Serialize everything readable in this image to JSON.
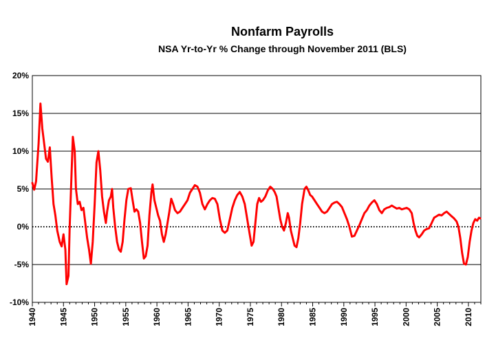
{
  "chart_data": {
    "type": "line",
    "title": "Nonfarm Payrolls",
    "subtitle": "NSA Yr-to-Yr % Change through November 2011 (BLS)",
    "xlabel": "",
    "ylabel": "",
    "xlim": [
      1940,
      2012
    ],
    "ylim": [
      -10,
      20
    ],
    "y_ticks": [
      20,
      15,
      10,
      5,
      0,
      -5,
      -10
    ],
    "y_tick_labels": [
      "20%",
      "15%",
      "10%",
      "5%",
      "0%",
      "-5%",
      "-10%"
    ],
    "x_ticks": [
      1940,
      1945,
      1950,
      1955,
      1960,
      1965,
      1970,
      1975,
      1980,
      1985,
      1990,
      1995,
      2000,
      2005,
      2010
    ],
    "x_tick_labels": [
      "1940",
      "1945",
      "1950",
      "1955",
      "1960",
      "1965",
      "1970",
      "1975",
      "1980",
      "1985",
      "1990",
      "1995",
      "2000",
      "2005",
      "2010"
    ],
    "grid": true,
    "zero_line": "dotted",
    "line_color": "#ff0000",
    "series": [
      {
        "name": "",
        "points": [
          [
            1940.0,
            5.8
          ],
          [
            1940.3,
            4.9
          ],
          [
            1940.6,
            6.0
          ],
          [
            1941.0,
            11.0
          ],
          [
            1941.3,
            16.3
          ],
          [
            1941.6,
            13.0
          ],
          [
            1941.9,
            11.0
          ],
          [
            1942.2,
            9.0
          ],
          [
            1942.5,
            8.6
          ],
          [
            1942.8,
            10.5
          ],
          [
            1943.1,
            6.5
          ],
          [
            1943.4,
            3.0
          ],
          [
            1943.7,
            1.5
          ],
          [
            1944.0,
            -0.5
          ],
          [
            1944.4,
            -2.0
          ],
          [
            1944.7,
            -2.6
          ],
          [
            1945.0,
            -1.0
          ],
          [
            1945.3,
            -3.0
          ],
          [
            1945.5,
            -7.6
          ],
          [
            1945.8,
            -6.5
          ],
          [
            1946.0,
            0.0
          ],
          [
            1946.3,
            7.0
          ],
          [
            1946.5,
            11.9
          ],
          [
            1946.8,
            10.0
          ],
          [
            1947.0,
            5.0
          ],
          [
            1947.3,
            3.0
          ],
          [
            1947.6,
            3.3
          ],
          [
            1947.9,
            2.2
          ],
          [
            1948.2,
            2.5
          ],
          [
            1948.5,
            0.5
          ],
          [
            1948.8,
            -1.5
          ],
          [
            1949.1,
            -3.0
          ],
          [
            1949.4,
            -4.9
          ],
          [
            1949.7,
            -2.0
          ],
          [
            1950.0,
            3.0
          ],
          [
            1950.3,
            8.5
          ],
          [
            1950.6,
            10.0
          ],
          [
            1950.9,
            7.5
          ],
          [
            1951.2,
            4.0
          ],
          [
            1951.5,
            2.0
          ],
          [
            1951.8,
            0.5
          ],
          [
            1952.0,
            2.0
          ],
          [
            1952.3,
            3.5
          ],
          [
            1952.6,
            4.0
          ],
          [
            1952.8,
            5.0
          ],
          [
            1953.0,
            2.5
          ],
          [
            1953.3,
            0.0
          ],
          [
            1953.6,
            -2.0
          ],
          [
            1953.9,
            -3.0
          ],
          [
            1954.2,
            -3.3
          ],
          [
            1954.5,
            -2.0
          ],
          [
            1954.8,
            1.0
          ],
          [
            1955.1,
            3.5
          ],
          [
            1955.4,
            5.0
          ],
          [
            1955.8,
            5.1
          ],
          [
            1956.1,
            3.5
          ],
          [
            1956.4,
            2.0
          ],
          [
            1956.7,
            2.3
          ],
          [
            1957.0,
            2.0
          ],
          [
            1957.3,
            0.5
          ],
          [
            1957.6,
            -2.0
          ],
          [
            1957.9,
            -4.2
          ],
          [
            1958.2,
            -3.9
          ],
          [
            1958.5,
            -2.5
          ],
          [
            1958.8,
            1.5
          ],
          [
            1959.1,
            4.5
          ],
          [
            1959.3,
            5.6
          ],
          [
            1959.6,
            3.5
          ],
          [
            1959.9,
            2.5
          ],
          [
            1960.2,
            1.5
          ],
          [
            1960.5,
            0.8
          ],
          [
            1960.8,
            -1.0
          ],
          [
            1961.1,
            -2.0
          ],
          [
            1961.4,
            -1.0
          ],
          [
            1961.7,
            0.5
          ],
          [
            1962.0,
            2.0
          ],
          [
            1962.3,
            3.7
          ],
          [
            1962.6,
            3.0
          ],
          [
            1962.9,
            2.2
          ],
          [
            1963.3,
            1.8
          ],
          [
            1963.7,
            2.0
          ],
          [
            1964.1,
            2.5
          ],
          [
            1964.5,
            3.0
          ],
          [
            1964.9,
            3.5
          ],
          [
            1965.3,
            4.5
          ],
          [
            1965.7,
            5.0
          ],
          [
            1966.1,
            5.5
          ],
          [
            1966.5,
            5.3
          ],
          [
            1966.9,
            4.5
          ],
          [
            1967.3,
            3.0
          ],
          [
            1967.7,
            2.3
          ],
          [
            1968.1,
            3.0
          ],
          [
            1968.5,
            3.5
          ],
          [
            1968.9,
            3.8
          ],
          [
            1969.3,
            3.7
          ],
          [
            1969.7,
            3.0
          ],
          [
            1970.1,
            1.0
          ],
          [
            1970.5,
            -0.5
          ],
          [
            1970.9,
            -0.8
          ],
          [
            1971.3,
            -0.5
          ],
          [
            1971.7,
            1.0
          ],
          [
            1972.1,
            2.5
          ],
          [
            1972.5,
            3.5
          ],
          [
            1972.9,
            4.2
          ],
          [
            1973.3,
            4.6
          ],
          [
            1973.7,
            4.0
          ],
          [
            1974.1,
            3.0
          ],
          [
            1974.5,
            1.0
          ],
          [
            1974.9,
            -1.0
          ],
          [
            1975.2,
            -2.5
          ],
          [
            1975.5,
            -2.0
          ],
          [
            1975.8,
            0.5
          ],
          [
            1976.1,
            3.0
          ],
          [
            1976.4,
            3.8
          ],
          [
            1976.7,
            3.3
          ],
          [
            1977.0,
            3.5
          ],
          [
            1977.4,
            4.0
          ],
          [
            1977.8,
            4.8
          ],
          [
            1978.2,
            5.3
          ],
          [
            1978.6,
            5.0
          ],
          [
            1978.9,
            4.6
          ],
          [
            1979.2,
            4.0
          ],
          [
            1979.5,
            2.5
          ],
          [
            1979.8,
            1.0
          ],
          [
            1980.1,
            0.0
          ],
          [
            1980.4,
            -0.5
          ],
          [
            1980.7,
            0.5
          ],
          [
            1981.0,
            1.8
          ],
          [
            1981.2,
            1.2
          ],
          [
            1981.5,
            -0.5
          ],
          [
            1981.8,
            -1.5
          ],
          [
            1982.1,
            -2.5
          ],
          [
            1982.4,
            -2.7
          ],
          [
            1982.7,
            -1.5
          ],
          [
            1983.0,
            0.5
          ],
          [
            1983.3,
            3.0
          ],
          [
            1983.7,
            5.0
          ],
          [
            1984.0,
            5.3
          ],
          [
            1984.3,
            4.8
          ],
          [
            1984.6,
            4.2
          ],
          [
            1984.9,
            4.0
          ],
          [
            1985.3,
            3.5
          ],
          [
            1985.7,
            3.0
          ],
          [
            1986.1,
            2.5
          ],
          [
            1986.5,
            2.0
          ],
          [
            1986.9,
            1.8
          ],
          [
            1987.3,
            2.0
          ],
          [
            1987.7,
            2.5
          ],
          [
            1988.1,
            3.0
          ],
          [
            1988.5,
            3.2
          ],
          [
            1988.9,
            3.3
          ],
          [
            1989.3,
            3.0
          ],
          [
            1989.7,
            2.6
          ],
          [
            1990.1,
            1.8
          ],
          [
            1990.5,
            1.0
          ],
          [
            1990.9,
            0.0
          ],
          [
            1991.3,
            -1.3
          ],
          [
            1991.7,
            -1.2
          ],
          [
            1992.1,
            -0.5
          ],
          [
            1992.5,
            0.2
          ],
          [
            1992.9,
            1.0
          ],
          [
            1993.3,
            1.8
          ],
          [
            1993.7,
            2.2
          ],
          [
            1994.1,
            2.8
          ],
          [
            1994.5,
            3.2
          ],
          [
            1994.9,
            3.5
          ],
          [
            1995.3,
            3.0
          ],
          [
            1995.7,
            2.2
          ],
          [
            1996.1,
            1.8
          ],
          [
            1996.5,
            2.3
          ],
          [
            1996.9,
            2.5
          ],
          [
            1997.3,
            2.6
          ],
          [
            1997.7,
            2.8
          ],
          [
            1998.1,
            2.6
          ],
          [
            1998.5,
            2.4
          ],
          [
            1998.9,
            2.5
          ],
          [
            1999.3,
            2.3
          ],
          [
            1999.7,
            2.4
          ],
          [
            2000.1,
            2.5
          ],
          [
            2000.5,
            2.3
          ],
          [
            2000.9,
            1.8
          ],
          [
            2001.2,
            0.5
          ],
          [
            2001.5,
            -0.5
          ],
          [
            2001.8,
            -1.2
          ],
          [
            2002.1,
            -1.4
          ],
          [
            2002.5,
            -1.0
          ],
          [
            2002.9,
            -0.5
          ],
          [
            2003.3,
            -0.3
          ],
          [
            2003.7,
            -0.2
          ],
          [
            2004.1,
            0.5
          ],
          [
            2004.5,
            1.2
          ],
          [
            2004.9,
            1.4
          ],
          [
            2005.3,
            1.6
          ],
          [
            2005.7,
            1.5
          ],
          [
            2006.1,
            1.8
          ],
          [
            2006.5,
            2.0
          ],
          [
            2006.9,
            1.7
          ],
          [
            2007.3,
            1.4
          ],
          [
            2007.7,
            1.1
          ],
          [
            2008.1,
            0.7
          ],
          [
            2008.4,
            0.0
          ],
          [
            2008.7,
            -1.5
          ],
          [
            2009.0,
            -3.5
          ],
          [
            2009.3,
            -4.9
          ],
          [
            2009.6,
            -5.0
          ],
          [
            2009.9,
            -4.0
          ],
          [
            2010.2,
            -2.0
          ],
          [
            2010.5,
            -0.5
          ],
          [
            2010.8,
            0.5
          ],
          [
            2011.1,
            1.0
          ],
          [
            2011.4,
            0.8
          ],
          [
            2011.7,
            1.2
          ],
          [
            2011.9,
            1.1
          ]
        ]
      }
    ]
  }
}
